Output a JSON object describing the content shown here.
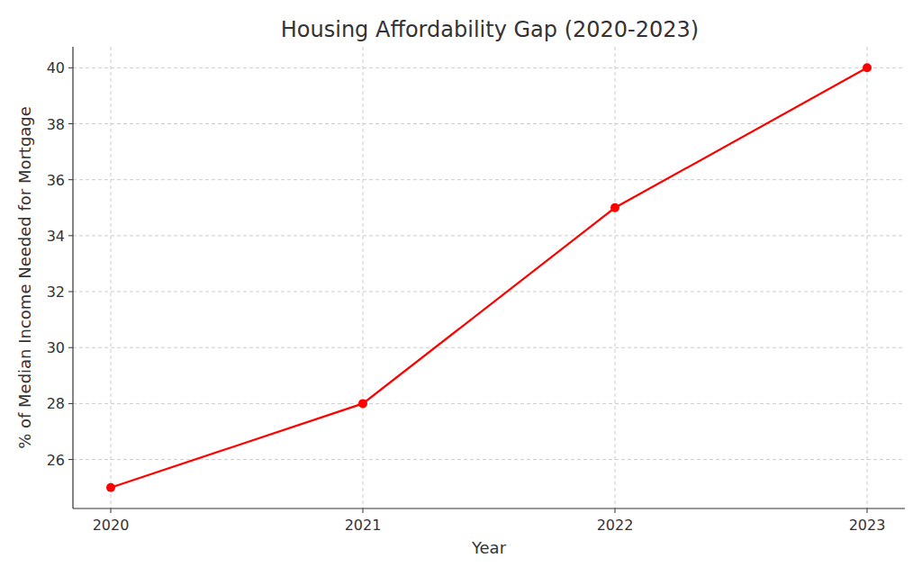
{
  "chart_data": {
    "type": "line",
    "title": "Housing Affordability Gap (2020-2023)",
    "x_label": "Year",
    "y_label": "% of Median Income Needed for Mortgage",
    "x": [
      2020,
      2021,
      2022,
      2023
    ],
    "values": [
      25,
      28,
      35,
      40
    ],
    "color": "#ff0000",
    "marker": "circle",
    "line_style": "solid",
    "xlim": [
      2019.85,
      2023.15
    ],
    "xticks": [
      2020,
      2021,
      2022,
      2023
    ],
    "ylim": [
      24.25,
      40.75
    ],
    "yticks": [
      26,
      28,
      30,
      32,
      34,
      36,
      38,
      40
    ],
    "grid": true
  }
}
